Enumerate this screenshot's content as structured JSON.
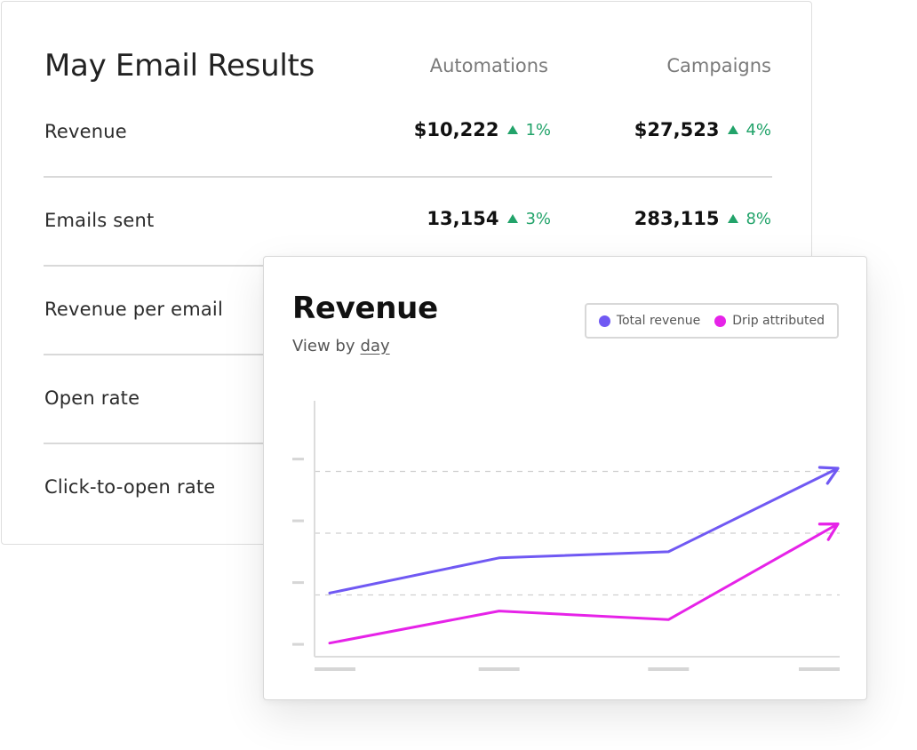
{
  "results": {
    "title": "May Email Results",
    "columns": {
      "automations": "Automations",
      "campaigns": "Campaigns"
    },
    "rows": [
      {
        "label": "Revenue",
        "automations": {
          "value": "$10,222",
          "change": "1%"
        },
        "campaigns": {
          "value": "$27,523",
          "change": "4%"
        }
      },
      {
        "label": "Emails sent",
        "automations": {
          "value": "13,154",
          "change": "3%"
        },
        "campaigns": {
          "value": "283,115",
          "change": "8%"
        }
      },
      {
        "label": "Revenue per email"
      },
      {
        "label": "Open rate"
      },
      {
        "label": "Click-to-open rate"
      }
    ],
    "colors": {
      "positive": "#22a36a"
    }
  },
  "revenue_card": {
    "title": "Revenue",
    "view_by_prefix": "View by",
    "view_by_value": "day",
    "legend": [
      {
        "label": "Total revenue",
        "color": "#7059f3"
      },
      {
        "label": "Drip attributed",
        "color": "#e623e8"
      }
    ]
  },
  "chart_data": {
    "type": "line",
    "title": "Revenue",
    "xlabel": "",
    "ylabel": "",
    "x": [
      1,
      2,
      3,
      4
    ],
    "ylim": [
      0,
      4
    ],
    "grid": true,
    "legend_position": "top-right",
    "series": [
      {
        "name": "Total revenue",
        "color": "#7059f3",
        "values": [
          1.03,
          1.6,
          1.7,
          3.05
        ]
      },
      {
        "name": "Drip attributed",
        "color": "#e623e8",
        "values": [
          0.22,
          0.74,
          0.6,
          2.15
        ]
      }
    ]
  }
}
